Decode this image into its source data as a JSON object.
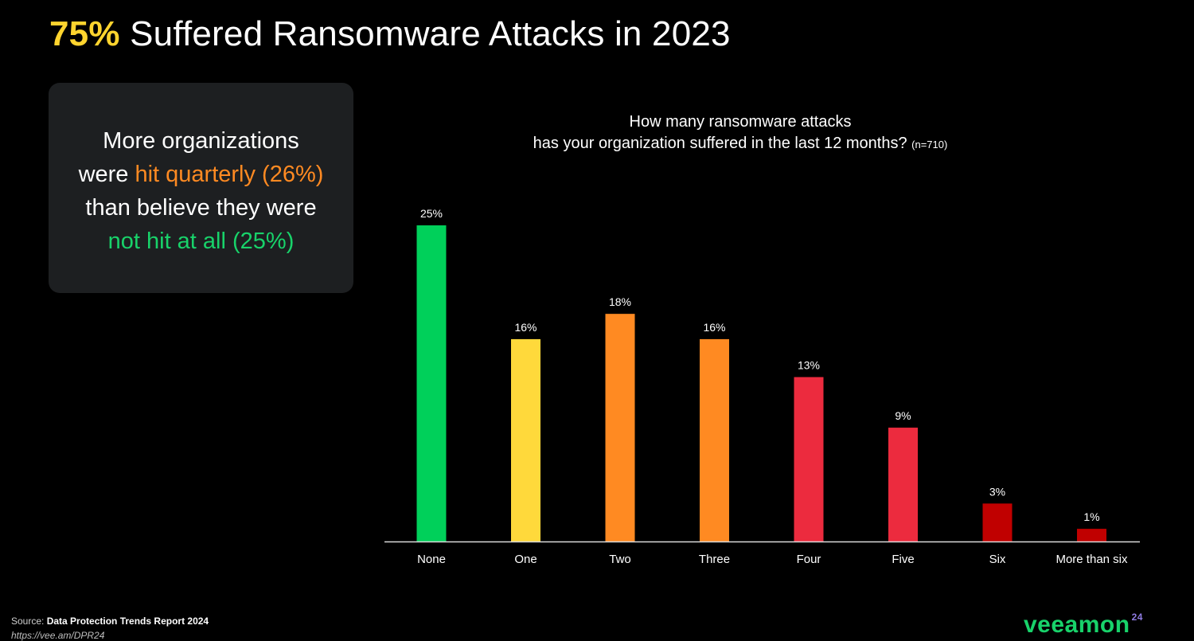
{
  "slide": {
    "title_highlight": "75%",
    "title_rest": " Suffered Ransomware Attacks in 2023"
  },
  "callout": {
    "line1": "More organizations",
    "line2_prefix": "were ",
    "line2_highlight": "hit quarterly (26%)",
    "line3": "than believe they were",
    "line4_highlight": "not hit at all (25%)"
  },
  "chart_title": {
    "line1": "How many ransomware attacks",
    "line2": "has your organization suffered  in the last 12 months? ",
    "sample_note": "(n=710)"
  },
  "footer": {
    "source_label": "Source: ",
    "source_name": "Data Protection Trends Report 2024",
    "source_url": "https://vee.am/DPR24",
    "logo_text": "veeamon",
    "logo_year": "24"
  },
  "colors": {
    "title_highlight": "#FFD42E",
    "callout_orange": "#FF8A22",
    "callout_green": "#18D26A",
    "callout_background": "#1D1F21"
  },
  "chart_data": {
    "type": "bar",
    "title": "How many ransomware attacks has your organization suffered  in the last 12 months? (n=710)",
    "categories": [
      "None",
      "One",
      "Two",
      "Three",
      "Four",
      "Five",
      "Six",
      "More than six"
    ],
    "values": [
      25,
      16,
      18,
      16,
      13,
      9,
      3,
      1
    ],
    "value_labels": [
      "25%",
      "16%",
      "18%",
      "16%",
      "13%",
      "9%",
      "3%",
      "1%"
    ],
    "colors": [
      "#00D05A",
      "#FFD93B",
      "#FF8A22",
      "#FF8A22",
      "#EC2B3E",
      "#EC2B3E",
      "#C00000",
      "#C00000"
    ],
    "xlabel": "",
    "ylabel": "",
    "ylim": [
      0,
      25
    ],
    "grid": false,
    "legend": "none"
  }
}
